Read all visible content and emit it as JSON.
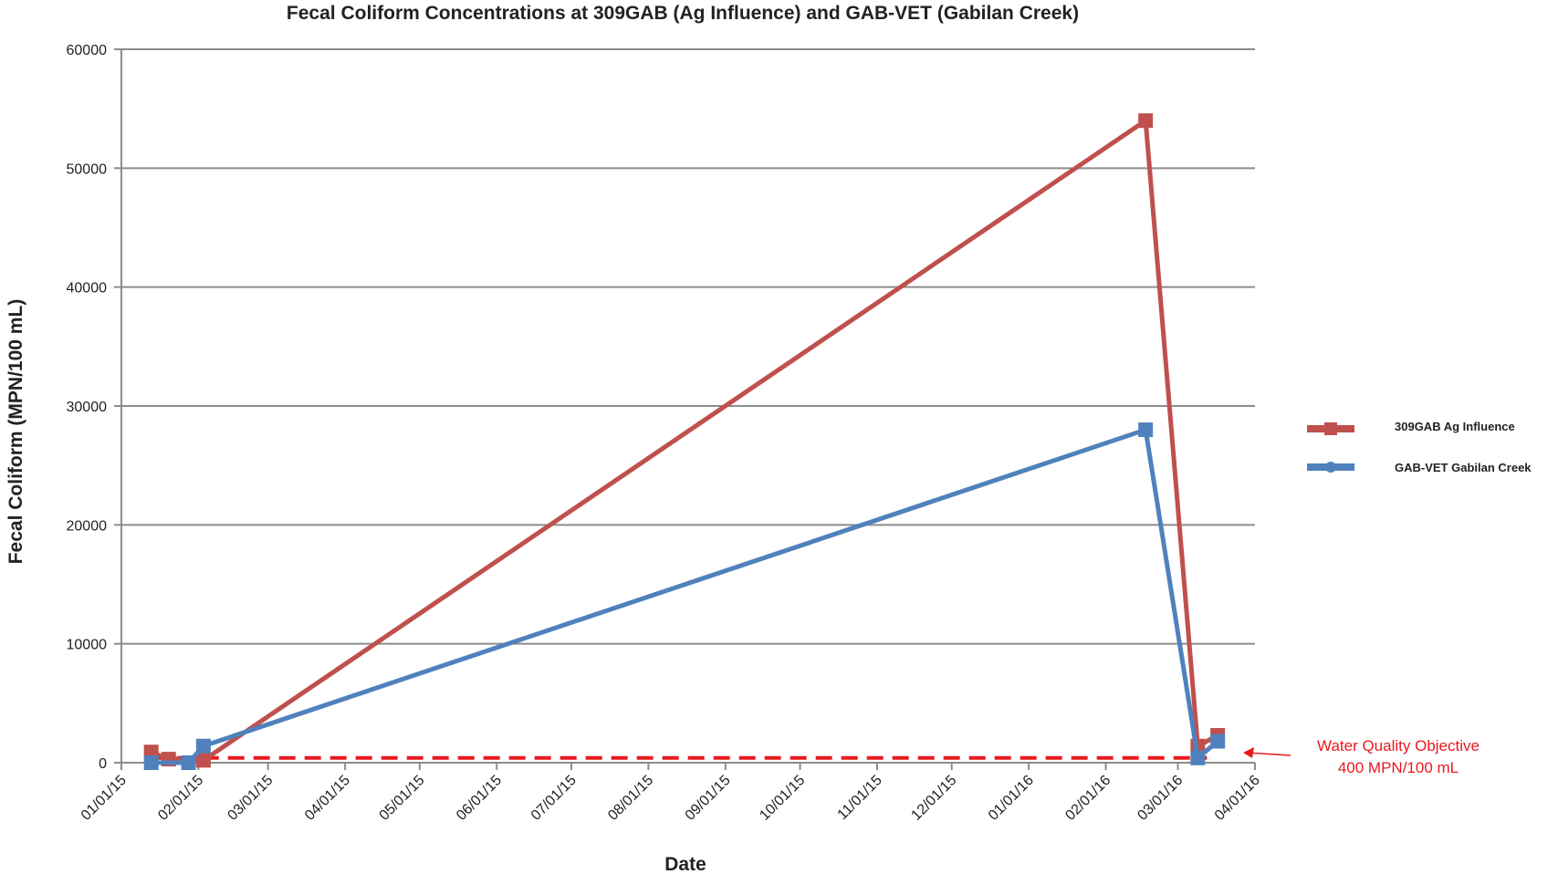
{
  "chart_data": {
    "type": "line",
    "title": "Fecal Coliform Concentrations at 309GAB (Ag Influence) and GAB-VET (Gabilan Creek)",
    "xlabel": "Date",
    "ylabel": "Fecal Coliform (MPN/100 mL)",
    "ylim": [
      0,
      60000
    ],
    "yticks": [
      "0",
      "10000",
      "20000",
      "30000",
      "40000",
      "50000",
      "60000"
    ],
    "xlim": [
      "2015-01-01",
      "2016-04-01"
    ],
    "xticks": [
      {
        "date": "2015-01-01",
        "label": "01/01/15"
      },
      {
        "date": "2015-02-01",
        "label": "02/01/15"
      },
      {
        "date": "2015-03-01",
        "label": "03/01/15"
      },
      {
        "date": "2015-04-01",
        "label": "04/01/15"
      },
      {
        "date": "2015-05-01",
        "label": "05/01/15"
      },
      {
        "date": "2015-06-01",
        "label": "06/01/15"
      },
      {
        "date": "2015-07-01",
        "label": "07/01/15"
      },
      {
        "date": "2015-08-01",
        "label": "08/01/15"
      },
      {
        "date": "2015-09-01",
        "label": "09/01/15"
      },
      {
        "date": "2015-10-01",
        "label": "10/01/15"
      },
      {
        "date": "2015-11-01",
        "label": "11/01/15"
      },
      {
        "date": "2015-12-01",
        "label": "12/01/15"
      },
      {
        "date": "2016-01-01",
        "label": "01/01/16"
      },
      {
        "date": "2016-02-01",
        "label": "02/01/16"
      },
      {
        "date": "2016-03-01",
        "label": "03/01/16"
      },
      {
        "date": "2016-04-01",
        "label": "04/01/16"
      }
    ],
    "grid": true,
    "legend_position": "right",
    "series": [
      {
        "name": "309GAB  Ag Influence",
        "color": "#c0504d",
        "marker": "square",
        "points": [
          {
            "x": "2015-01-13",
            "y": 900
          },
          {
            "x": "2015-01-20",
            "y": 300
          },
          {
            "x": "2015-02-03",
            "y": 200
          },
          {
            "x": "2016-02-17",
            "y": 54000
          },
          {
            "x": "2016-03-09",
            "y": 1400
          },
          {
            "x": "2016-03-17",
            "y": 2300
          }
        ]
      },
      {
        "name": "GAB-VET Gabilan Creek",
        "color": "#4f81bd",
        "marker": "square",
        "points": [
          {
            "x": "2015-01-13",
            "y": 0
          },
          {
            "x": "2015-01-28",
            "y": 0
          },
          {
            "x": "2015-02-03",
            "y": 1400
          },
          {
            "x": "2016-02-17",
            "y": 28000
          },
          {
            "x": "2016-03-09",
            "y": 400
          },
          {
            "x": "2016-03-17",
            "y": 1800
          }
        ]
      }
    ],
    "objective": {
      "value": 400,
      "color": "#e8191f",
      "label_line1": "Water Quality Objective",
      "label_line2": "400 MPN/100 mL"
    }
  }
}
